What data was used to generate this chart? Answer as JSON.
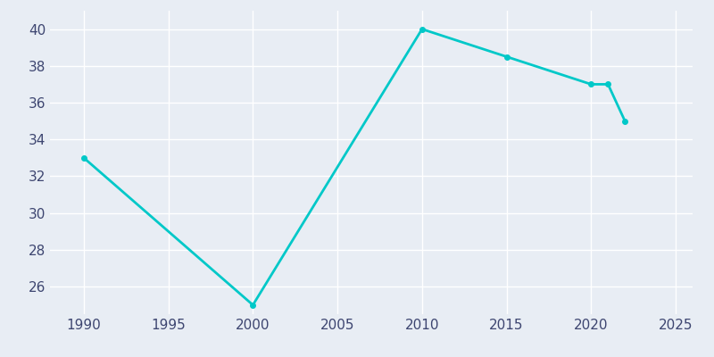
{
  "years": [
    1990,
    2000,
    2010,
    2015,
    2020,
    2021,
    2022
  ],
  "population": [
    33,
    25,
    40,
    38.5,
    37,
    37,
    35
  ],
  "line_color": "#00c8c8",
  "marker": "o",
  "marker_size": 4,
  "background_color": "#e8edf4",
  "grid_color": "#ffffff",
  "xlim": [
    1988,
    2026
  ],
  "ylim": [
    24.5,
    41
  ],
  "xticks": [
    1990,
    1995,
    2000,
    2005,
    2010,
    2015,
    2020,
    2025
  ],
  "yticks": [
    26,
    28,
    30,
    32,
    34,
    36,
    38,
    40
  ],
  "tick_color": "#3d4570",
  "tick_fontsize": 11
}
